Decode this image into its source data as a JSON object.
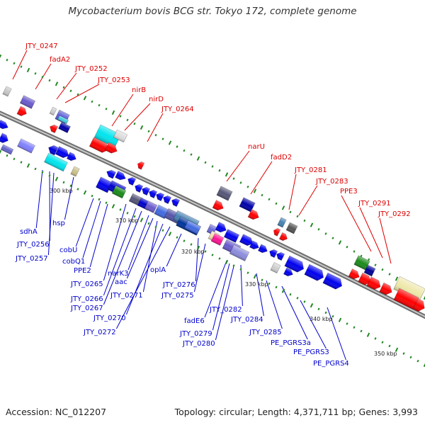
{
  "title": "Mycobacterium bovis BCG str. Tokyo 172, complete genome",
  "footer": {
    "accession": "Accession: NC_012207",
    "stats": "Topology: circular; Length: 4,371,711 bp; Genes: 3,993"
  },
  "colors": {
    "backbone": "#8a8a8a",
    "upper_label": "#dd0000",
    "lower_label": "#0000cc",
    "tick": "#228822"
  },
  "ticks": [
    "300 kbp",
    "310 kbp",
    "320 kbp",
    "330 kbp",
    "340 kbp",
    "350 kbp"
  ],
  "upper_labels": [
    "JTY_0247",
    "fadA2",
    "JTY_0252",
    "JTY_0253",
    "nirB",
    "nirD",
    "JTY_0264",
    "narU",
    "fadD2",
    "JTY_0281",
    "JTY_0283",
    "PPE3",
    "JTY_0291",
    "JTY_0292"
  ],
  "lower_labels": [
    "sdhA",
    "JTY_0256",
    "JTY_0257",
    "hsp",
    "cobU",
    "cobQ1",
    "PPE2",
    "JTY_0265",
    "JTY_0266",
    "JTY_0267",
    "narK3",
    "aac",
    "JTY_0271",
    "JTY_0270",
    "JTY_0272",
    "oplA",
    "JTY_0276",
    "JTY_0275",
    "fadE6",
    "JTY_0282",
    "JTY_0279",
    "JTY_0280",
    "JTY_0284",
    "JTY_0285",
    "PE_PGRS3a",
    "PE_PGRS3",
    "PE_PGRS4"
  ]
}
